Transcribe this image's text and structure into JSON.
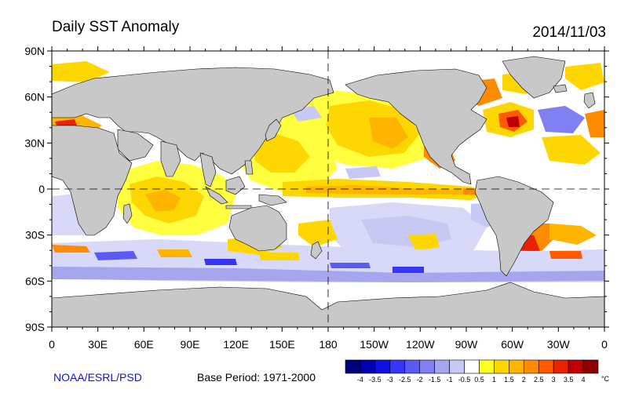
{
  "header": {
    "title": "Daily SST Anomaly",
    "date": "2014/11/03"
  },
  "footer": {
    "credit": "NOAA/ESRL/PSD",
    "base_period": "Base Period: 1971-2000"
  },
  "map": {
    "projection": "cylindrical equidistant, centered at 180",
    "lon_range": [
      0,
      360
    ],
    "lat_range": [
      -90,
      90
    ],
    "lat_ticks": [
      {
        "lat": 90,
        "label": "90N"
      },
      {
        "lat": 60,
        "label": "60N"
      },
      {
        "lat": 30,
        "label": "30N"
      },
      {
        "lat": 0,
        "label": "0"
      },
      {
        "lat": -30,
        "label": "30S"
      },
      {
        "lat": -60,
        "label": "60S"
      },
      {
        "lat": -90,
        "label": "90S"
      }
    ],
    "lon_ticks": [
      {
        "lon": 0,
        "label": "0"
      },
      {
        "lon": 30,
        "label": "30E"
      },
      {
        "lon": 60,
        "label": "60E"
      },
      {
        "lon": 90,
        "label": "90E"
      },
      {
        "lon": 120,
        "label": "120E"
      },
      {
        "lon": 150,
        "label": "150E"
      },
      {
        "lon": 180,
        "label": "180"
      },
      {
        "lon": 210,
        "label": "150W"
      },
      {
        "lon": 240,
        "label": "120W"
      },
      {
        "lon": 270,
        "label": "90W"
      },
      {
        "lon": 300,
        "label": "60W"
      },
      {
        "lon": 330,
        "label": "30W"
      },
      {
        "lon": 360,
        "label": "0"
      }
    ],
    "colors": {
      "land": "#c8c8c8",
      "ocean_neutral": "#ffffff"
    }
  },
  "colorbar": {
    "unit": "°C",
    "labels": [
      "-4",
      "-3.5",
      "-3",
      "-2.5",
      "-2",
      "-1.5",
      "-1",
      "-0.5",
      "0.5",
      "1",
      "1.5",
      "2",
      "2.5",
      "3",
      "3.5",
      "4"
    ],
    "colors": [
      "#00007d",
      "#0000b0",
      "#1010e0",
      "#3636f5",
      "#5a5af5",
      "#8080f2",
      "#a6a6ef",
      "#c8c8f5",
      "#ffffff",
      "#ffff20",
      "#ffd700",
      "#ffb400",
      "#ff8c00",
      "#ff5a00",
      "#ea2000",
      "#c00000",
      "#8a0000"
    ]
  }
}
